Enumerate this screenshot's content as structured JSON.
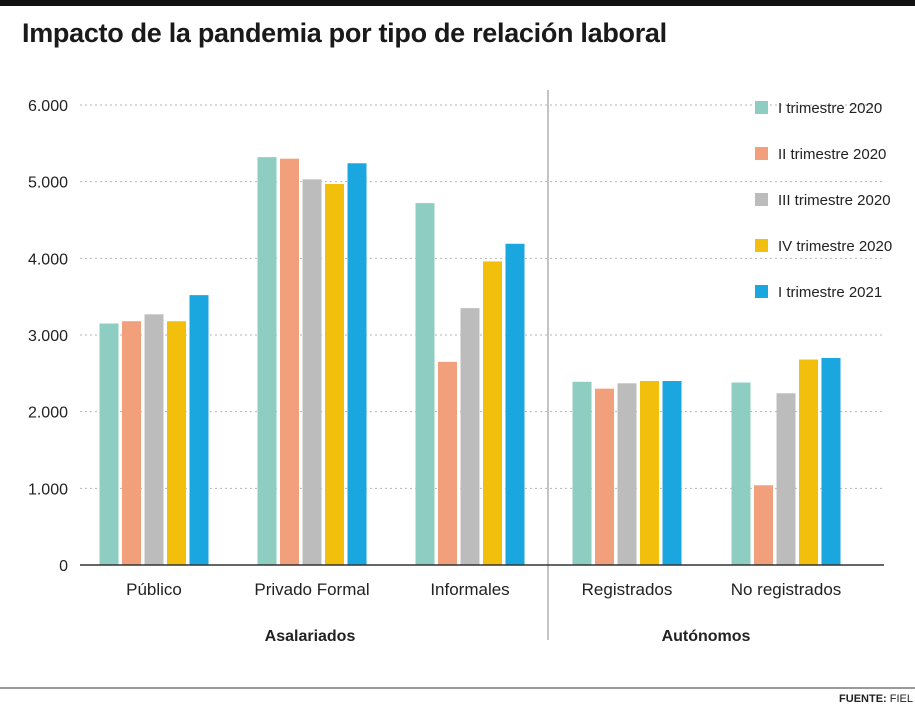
{
  "title": "Impacto de la pandemia por tipo de relación laboral",
  "source": {
    "label": "FUENTE:",
    "value": "FIEL"
  },
  "colors": {
    "I trimestre 2020": "#8ecdc2",
    "II trimestre 2020": "#f2a07c",
    "III trimestre 2020": "#bcbcbc",
    "IV trimestre 2020": "#f2bf0c",
    "I trimestre 2021": "#1aa6df"
  },
  "chart_data": {
    "type": "bar",
    "title": "Impacto de la pandemia por tipo de relación laboral",
    "xlabel": "",
    "ylabel": "",
    "ylim": [
      0,
      6000
    ],
    "yticks": [
      0,
      1000,
      2000,
      3000,
      4000,
      5000,
      6000
    ],
    "ytick_labels": [
      "0",
      "1.000",
      "2.000",
      "3.000",
      "4.000",
      "5.000",
      "6.000"
    ],
    "grid": true,
    "legend_position": "top-right",
    "categories": [
      "Público",
      "Privado Formal",
      "Informales",
      "Registrados",
      "No registrados"
    ],
    "groups": [
      {
        "label": "Asalariados",
        "categories": [
          "Público",
          "Privado Formal",
          "Informales"
        ]
      },
      {
        "label": "Autónomos",
        "categories": [
          "Registrados",
          "No registrados"
        ]
      }
    ],
    "series": [
      {
        "name": "I trimestre 2020",
        "values": [
          3150,
          5320,
          4720,
          2390,
          2380
        ]
      },
      {
        "name": "II trimestre 2020",
        "values": [
          3180,
          5300,
          2650,
          2300,
          1040
        ]
      },
      {
        "name": "III trimestre 2020",
        "values": [
          3270,
          5030,
          3350,
          2370,
          2240
        ]
      },
      {
        "name": "IV trimestre 2020",
        "values": [
          3180,
          4970,
          3960,
          2400,
          2680
        ]
      },
      {
        "name": "I trimestre 2021",
        "values": [
          3520,
          5240,
          4190,
          2400,
          2700
        ]
      }
    ]
  }
}
